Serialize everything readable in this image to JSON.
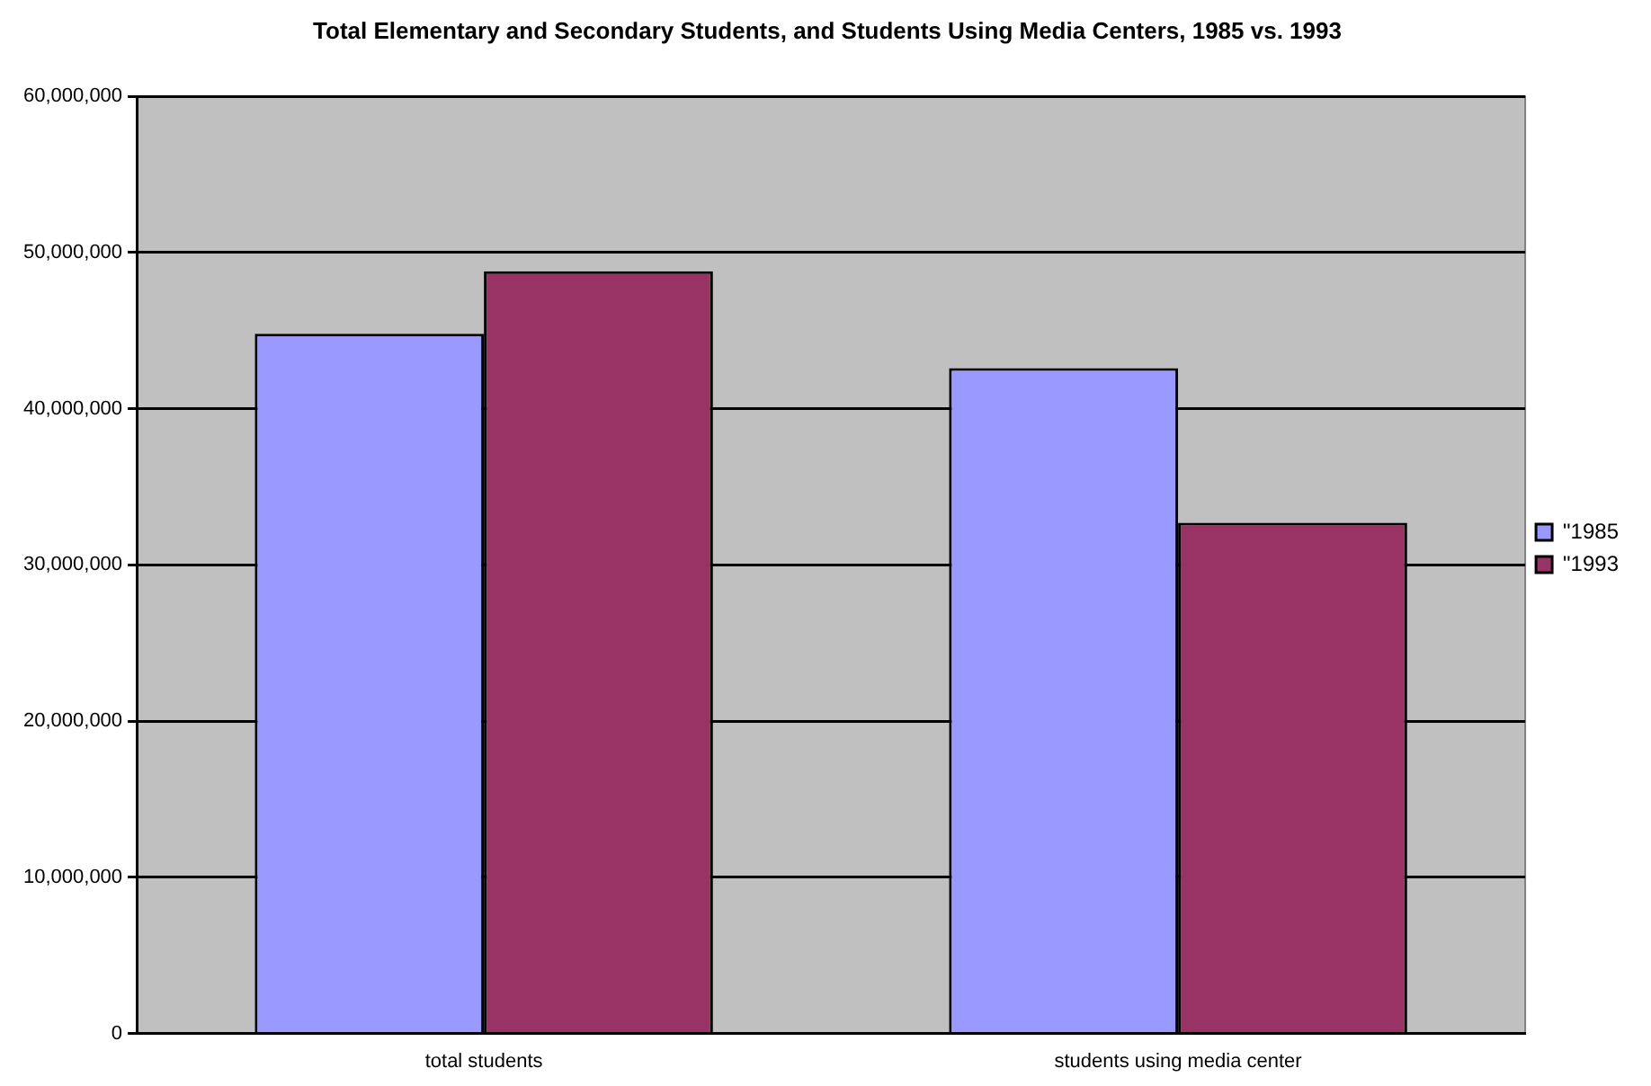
{
  "chart_data": {
    "type": "bar",
    "title": "Total Elementary and Secondary Students, and Students Using Media Centers, 1985 vs. 1993",
    "categories": [
      "total students",
      "students using media center"
    ],
    "series": [
      {
        "name": "\"1985",
        "color": "#9999ff",
        "values": [
          44800000,
          42600000
        ]
      },
      {
        "name": "\"1993",
        "color": "#993366",
        "values": [
          48800000,
          32700000
        ]
      }
    ],
    "ylim": [
      0,
      60000000
    ],
    "yticks": [
      0,
      {
        "value": 10000000,
        "label": "10,000,000"
      },
      {
        "value": 20000000,
        "label": "20,000,000"
      },
      {
        "value": 30000000,
        "label": "30,000,000"
      },
      {
        "value": 40000000,
        "label": "40,000,000"
      },
      {
        "value": 50000000,
        "label": "50,000,000"
      },
      {
        "value": 60000000,
        "label": "60,000,000"
      }
    ],
    "grid": "y",
    "legend": "right"
  }
}
